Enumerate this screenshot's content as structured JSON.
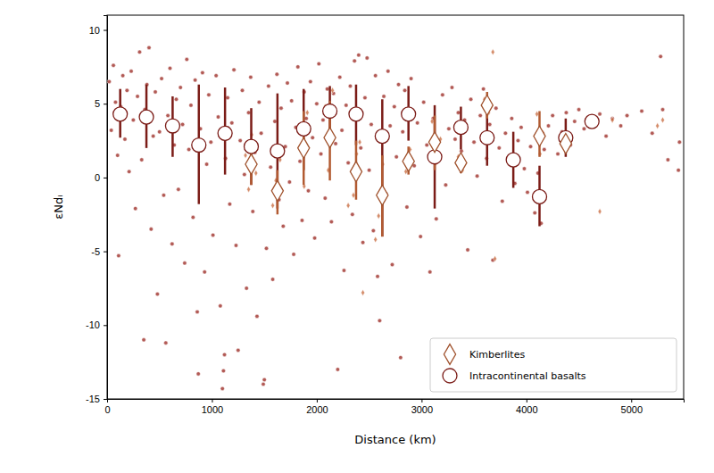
{
  "chart_data": {
    "type": "scatter",
    "xlabel": "Distance (km)",
    "ylabel": "εNdᵢ",
    "xlim": [
      0,
      5500
    ],
    "ylim": [
      -15,
      11
    ],
    "xticks": [
      0,
      1000,
      2000,
      3000,
      4000,
      5000
    ],
    "yticks": [
      -15,
      -10,
      -5,
      0,
      5,
      10
    ],
    "legend": "lower right",
    "series": [
      {
        "name": "Kimberlites",
        "marker": "diamond",
        "color": "#a0522d",
        "x": [
          1375,
          1625,
          1875,
          2125,
          2375,
          2625,
          2875,
          3125,
          3375,
          3625,
          4125,
          4375
        ],
        "values": [
          0.9,
          -0.9,
          2.0,
          2.7,
          0.4,
          -1.2,
          1.1,
          2.4,
          1.0,
          4.9,
          2.8,
          2.3
        ],
        "lower": [
          -0.5,
          -2.5,
          -0.5,
          -0.2,
          -1.5,
          -4.0,
          0.2,
          0.5,
          0.3,
          4.0,
          1.4,
          1.8
        ],
        "upper": [
          2.5,
          0.5,
          4.5,
          5.2,
          2.5,
          1.5,
          2.1,
          4.2,
          1.6,
          5.8,
          4.5,
          2.7
        ],
        "samples": [
          [
            1320,
            1.5
          ],
          [
            1350,
            -0.8
          ],
          [
            1380,
            2.9
          ],
          [
            1420,
            0.3
          ],
          [
            1580,
            -1.9
          ],
          [
            1610,
            -0.2
          ],
          [
            1650,
            1.2
          ],
          [
            1850,
            3.2
          ],
          [
            1880,
            -0.6
          ],
          [
            1910,
            4.4
          ],
          [
            2080,
            4.8
          ],
          [
            2110,
            0.5
          ],
          [
            2150,
            5.9
          ],
          [
            2300,
            -1.9
          ],
          [
            2350,
            -1.2
          ],
          [
            2380,
            1.6
          ],
          [
            2410,
            2.4
          ],
          [
            2440,
            -7.8
          ],
          [
            2560,
            -4.2
          ],
          [
            2590,
            -2.6
          ],
          [
            2630,
            0.9
          ],
          [
            2850,
            0.4
          ],
          [
            2890,
            1.9
          ],
          [
            3100,
            3.8
          ],
          [
            3140,
            1.0
          ],
          [
            3180,
            2.6
          ],
          [
            3350,
            1.4
          ],
          [
            3390,
            0.5
          ],
          [
            3600,
            5.3
          ],
          [
            3640,
            4.4
          ],
          [
            3680,
            8.5
          ],
          [
            3700,
            -5.5
          ],
          [
            4100,
            4.3
          ],
          [
            4130,
            1.6
          ],
          [
            4160,
            3.0
          ],
          [
            4360,
            2.0
          ],
          [
            4400,
            2.6
          ],
          [
            4700,
            -2.3
          ],
          [
            4820,
            3.9
          ],
          [
            5250,
            3.5
          ],
          [
            5300,
            3.9
          ]
        ]
      },
      {
        "name": "Intracontinental basalts",
        "marker": "circle",
        "color": "#7b1c17",
        "x": [
          125,
          375,
          625,
          875,
          1125,
          1375,
          1625,
          1875,
          2125,
          2375,
          2625,
          2875,
          3125,
          3375,
          3625,
          3875,
          4125,
          4375,
          4625
        ],
        "values": [
          4.3,
          4.1,
          3.5,
          2.2,
          3.0,
          2.1,
          1.8,
          3.3,
          4.5,
          4.3,
          2.8,
          4.3,
          1.4,
          3.4,
          2.7,
          1.2,
          -1.3,
          2.7,
          3.8
        ],
        "lower": [
          2.7,
          2.0,
          1.4,
          -1.8,
          0.2,
          -0.5,
          -2.1,
          0.5,
          2.8,
          2.2,
          -4.0,
          2.5,
          -2.1,
          1.9,
          0.8,
          -0.7,
          -3.3,
          1.4,
          null
        ],
        "upper": [
          6.0,
          6.3,
          5.5,
          6.3,
          6.1,
          4.7,
          5.7,
          6.0,
          6.2,
          6.3,
          5.3,
          6.2,
          4.9,
          4.8,
          4.9,
          3.1,
          0.8,
          4.0,
          null
        ],
        "samples": [
          [
            20,
            6.5
          ],
          [
            40,
            3.2
          ],
          [
            60,
            7.6
          ],
          [
            80,
            5.1
          ],
          [
            100,
            1.5
          ],
          [
            110,
            -5.3
          ],
          [
            130,
            4.8
          ],
          [
            150,
            6.9
          ],
          [
            170,
            2.6
          ],
          [
            190,
            5.9
          ],
          [
            210,
            0.4
          ],
          [
            230,
            7.2
          ],
          [
            250,
            3.9
          ],
          [
            270,
            -2.1
          ],
          [
            290,
            5.5
          ],
          [
            310,
            8.5
          ],
          [
            330,
            1.2
          ],
          [
            350,
            -11
          ],
          [
            360,
            4.6
          ],
          [
            380,
            6.3
          ],
          [
            400,
            8.8
          ],
          [
            420,
            -3.5
          ],
          [
            440,
            2.8
          ],
          [
            460,
            5.8
          ],
          [
            480,
            -7.9
          ],
          [
            500,
            3.1
          ],
          [
            520,
            6.7
          ],
          [
            540,
            -1.2
          ],
          [
            560,
            -11.2
          ],
          [
            580,
            4.2
          ],
          [
            600,
            7.4
          ],
          [
            620,
            -4.5
          ],
          [
            640,
            2.2
          ],
          [
            660,
            5.3
          ],
          [
            680,
            -0.8
          ],
          [
            700,
            6.1
          ],
          [
            720,
            3.6
          ],
          [
            740,
            -5.8
          ],
          [
            760,
            8.0
          ],
          [
            780,
            1.9
          ],
          [
            800,
            4.9
          ],
          [
            820,
            -2.7
          ],
          [
            840,
            6.6
          ],
          [
            860,
            -9.1
          ],
          [
            870,
            -13.3
          ],
          [
            890,
            3.3
          ],
          [
            910,
            7.1
          ],
          [
            930,
            -6.4
          ],
          [
            950,
            0.9
          ],
          [
            970,
            5.6
          ],
          [
            990,
            2.4
          ],
          [
            1010,
            -3.9
          ],
          [
            1040,
            6.9
          ],
          [
            1060,
            4.1
          ],
          [
            1080,
            -8.7
          ],
          [
            1100,
            -14.3
          ],
          [
            1110,
            -13.1
          ],
          [
            1120,
            -12.0
          ],
          [
            1130,
            1.3
          ],
          [
            1150,
            5.4
          ],
          [
            1170,
            -1.8
          ],
          [
            1190,
            3.7
          ],
          [
            1210,
            7.3
          ],
          [
            1230,
            -4.6
          ],
          [
            1250,
            -11.7
          ],
          [
            1270,
            2.5
          ],
          [
            1290,
            5.9
          ],
          [
            1310,
            0.2
          ],
          [
            1330,
            -7.5
          ],
          [
            1350,
            4.4
          ],
          [
            1370,
            6.8
          ],
          [
            1390,
            -2.3
          ],
          [
            1410,
            1.7
          ],
          [
            1430,
            -9.4
          ],
          [
            1450,
            5.1
          ],
          [
            1470,
            3.0
          ],
          [
            1490,
            -14.0
          ],
          [
            1500,
            -13.7
          ],
          [
            1520,
            -4.8
          ],
          [
            1540,
            6.2
          ],
          [
            1560,
            0.7
          ],
          [
            1580,
            -6.9
          ],
          [
            1600,
            3.8
          ],
          [
            1620,
            7.0
          ],
          [
            1640,
            -1.5
          ],
          [
            1660,
            4.7
          ],
          [
            1680,
            -3.3
          ],
          [
            1700,
            2.1
          ],
          [
            1720,
            6.4
          ],
          [
            1740,
            -0.3
          ],
          [
            1760,
            5.2
          ],
          [
            1780,
            -5.2
          ],
          [
            1800,
            3.4
          ],
          [
            1820,
            7.5
          ],
          [
            1840,
            1.1
          ],
          [
            1860,
            -2.9
          ],
          [
            1880,
            5.8
          ],
          [
            1900,
            4.0
          ],
          [
            1920,
            -0.9
          ],
          [
            1940,
            6.5
          ],
          [
            1960,
            2.7
          ],
          [
            1980,
            -4.1
          ],
          [
            2000,
            5.0
          ],
          [
            2020,
            7.7
          ],
          [
            2040,
            1.6
          ],
          [
            2060,
            3.9
          ],
          [
            2080,
            -1.4
          ],
          [
            2100,
            6.0
          ],
          [
            2120,
            4.6
          ],
          [
            2140,
            -3.0
          ],
          [
            2160,
            5.7
          ],
          [
            2180,
            2.3
          ],
          [
            2200,
            -13.0
          ],
          [
            2220,
            6.8
          ],
          [
            2240,
            3.2
          ],
          [
            2260,
            -6.3
          ],
          [
            2280,
            4.9
          ],
          [
            2300,
            1.0
          ],
          [
            2320,
            6.2
          ],
          [
            2340,
            -2.5
          ],
          [
            2360,
            7.9
          ],
          [
            2380,
            4.3
          ],
          [
            2400,
            8.3
          ],
          [
            2420,
            2.0
          ],
          [
            2440,
            -4.4
          ],
          [
            2460,
            5.4
          ],
          [
            2480,
            8.1
          ],
          [
            2500,
            0.5
          ],
          [
            2520,
            3.6
          ],
          [
            2540,
            -3.6
          ],
          [
            2560,
            6.9
          ],
          [
            2580,
            -6.7
          ],
          [
            2600,
            -9.7
          ],
          [
            2620,
            2.9
          ],
          [
            2640,
            5.5
          ],
          [
            2660,
            -1.1
          ],
          [
            2680,
            7.2
          ],
          [
            2700,
            3.5
          ],
          [
            2720,
            -5.9
          ],
          [
            2740,
            4.8
          ],
          [
            2760,
            1.4
          ],
          [
            2780,
            6.3
          ],
          [
            2800,
            -12.2
          ],
          [
            2820,
            3.1
          ],
          [
            2840,
            5.9
          ],
          [
            2860,
            -2.0
          ],
          [
            2880,
            4.5
          ],
          [
            2900,
            6.7
          ],
          [
            2930,
            0.8
          ],
          [
            2960,
            3.7
          ],
          [
            2990,
            -4.0
          ],
          [
            3020,
            5.1
          ],
          [
            3050,
            2.2
          ],
          [
            3080,
            -6.4
          ],
          [
            3110,
            4.0
          ],
          [
            3140,
            -2.8
          ],
          [
            3170,
            1.5
          ],
          [
            3200,
            5.6
          ],
          [
            3230,
            -0.5
          ],
          [
            3260,
            3.3
          ],
          [
            3290,
            6.1
          ],
          [
            3320,
            2.6
          ],
          [
            3350,
            4.4
          ],
          [
            3380,
            1.8
          ],
          [
            3410,
            3.9
          ],
          [
            3440,
            -4.9
          ],
          [
            3470,
            5.3
          ],
          [
            3500,
            2.4
          ],
          [
            3530,
            0.1
          ],
          [
            3560,
            4.2
          ],
          [
            3590,
            6.0
          ],
          [
            3620,
            1.3
          ],
          [
            3650,
            3.6
          ],
          [
            3680,
            -5.6
          ],
          [
            3710,
            4.7
          ],
          [
            3740,
            2.0
          ],
          [
            3770,
            -1.6
          ],
          [
            3800,
            3.0
          ],
          [
            3830,
            1.1
          ],
          [
            3860,
            4.0
          ],
          [
            3890,
            -0.4
          ],
          [
            3920,
            2.5
          ],
          [
            3950,
            3.4
          ],
          [
            3980,
            0.6
          ],
          [
            4010,
            -1.0
          ],
          [
            4040,
            2.1
          ],
          [
            4080,
            -2.4
          ],
          [
            4110,
            0.3
          ],
          [
            4140,
            -3.1
          ],
          [
            4170,
            1.9
          ],
          [
            4210,
            3.5
          ],
          [
            4250,
            4.2
          ],
          [
            4300,
            1.6
          ],
          [
            4340,
            3.1
          ],
          [
            4380,
            4.4
          ],
          [
            4420,
            2.2
          ],
          [
            4460,
            3.8
          ],
          [
            4500,
            4.6
          ],
          [
            4550,
            3.3
          ],
          [
            4600,
            4.1
          ],
          [
            4650,
            3.6
          ],
          [
            4700,
            4.3
          ],
          [
            4760,
            2.8
          ],
          [
            4820,
            4.0
          ],
          [
            4900,
            3.5
          ],
          [
            4960,
            4.2
          ],
          [
            5100,
            4.5
          ],
          [
            5200,
            3.0
          ],
          [
            5280,
            8.2
          ],
          [
            5300,
            4.6
          ],
          [
            5350,
            1.2
          ],
          [
            5450,
            0.5
          ],
          [
            5460,
            2.4
          ]
        ]
      }
    ]
  }
}
